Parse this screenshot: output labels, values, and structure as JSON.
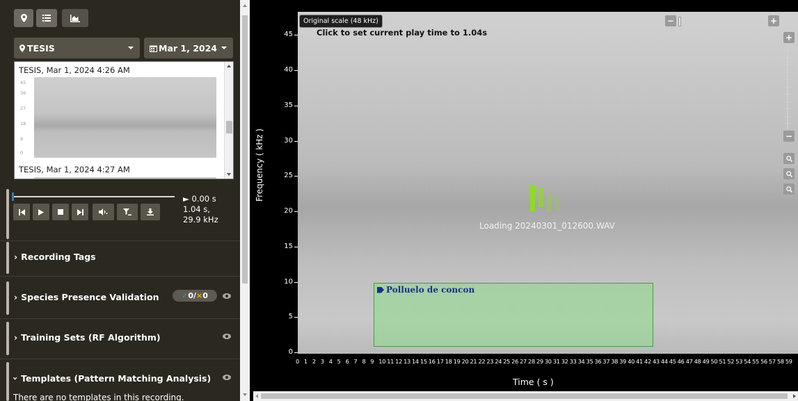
{
  "toolbar": {
    "buttons": [
      {
        "icon": "map-marker-icon",
        "glyph": "⚲"
      },
      {
        "icon": "list-icon",
        "glyph": "≡"
      },
      {
        "icon": "area-chart-icon",
        "glyph": "▲"
      }
    ]
  },
  "site_dropdown": {
    "label": "TESIS",
    "icon": "map-marker-icon"
  },
  "date_dropdown": {
    "label": "Mar 1, 2024",
    "icon": "calendar-icon"
  },
  "recordings": [
    {
      "title": "TESIS, Mar 1, 2024 4:26 AM",
      "axis": [
        "45",
        "36",
        "27",
        "18",
        "9",
        "0"
      ]
    },
    {
      "title": "TESIS, Mar 1, 2024 4:27 AM"
    }
  ],
  "player": {
    "progress": 0.0,
    "current_time": "► 0.00 s",
    "click_time": "1.04 s,",
    "click_freq": "29.9 kHz",
    "buttons": [
      {
        "name": "skip-back-button",
        "icon": "step-backward-icon",
        "glyph": "⏮"
      },
      {
        "name": "play-button",
        "icon": "play-icon",
        "glyph": "▶"
      },
      {
        "name": "stop-button",
        "icon": "stop-icon",
        "glyph": "■"
      },
      {
        "name": "skip-forward-button",
        "icon": "step-forward-icon",
        "glyph": "⏭"
      },
      {
        "name": "volume-button",
        "icon": "volume-icon",
        "glyph": "🔈"
      },
      {
        "name": "filter-button",
        "icon": "filter-icon",
        "glyph": "▼"
      },
      {
        "name": "download-button",
        "icon": "download-icon",
        "glyph": "⤓"
      }
    ]
  },
  "panels": {
    "recording_tags": "Recording Tags",
    "species_validation": "Species Presence Validation",
    "species_validation_badge": {
      "check_count": "0",
      "x_count": "0",
      "separator": "/"
    },
    "training_sets": "Training Sets (RF Algorithm)",
    "templates": "Templates (Pattern Matching Analysis)",
    "templates_empty": "There are no templates in this recording."
  },
  "viewer": {
    "scale_badge": "Original scale (48 kHz)",
    "click_message": "Click to set current play time to 1.04s",
    "loading_message": "Loading 20240301_012600.WAV",
    "y_axis_label": "Frequency ( kHz )",
    "x_axis_label": "Time ( s )",
    "y_ticks": [
      "45",
      "40",
      "35",
      "30",
      "25",
      "20",
      "15",
      "10",
      "5",
      "0"
    ],
    "x_ticks": [
      "0",
      "1",
      "2",
      "3",
      "4",
      "5",
      "6",
      "7",
      "8",
      "9",
      "10",
      "11",
      "12",
      "13",
      "14",
      "15",
      "16",
      "17",
      "18",
      "19",
      "20",
      "21",
      "22",
      "23",
      "24",
      "25",
      "26",
      "27",
      "28",
      "29",
      "30",
      "31",
      "32",
      "33",
      "34",
      "35",
      "36",
      "37",
      "38",
      "39",
      "40",
      "41",
      "42",
      "43",
      "44",
      "45",
      "46",
      "47",
      "48",
      "49",
      "50",
      "51",
      "52",
      "53",
      "54",
      "55",
      "56",
      "57",
      "58",
      "59"
    ],
    "annotation": {
      "label": "Polluelo de concon",
      "color": "#8cdc8c",
      "start_s": 9,
      "end_s": 42.3,
      "low_khz": 1.0,
      "high_khz": 10.0
    },
    "zoom_controls": {
      "minus": "−",
      "plus": "+",
      "zoom_icons": [
        "zoom-in-icon",
        "zoom-icon",
        "zoom-out-icon"
      ]
    }
  },
  "colors": {
    "sidebar_bg": "#2b2820",
    "accent": "#3a78b5",
    "annotation_text": "#1a2e8c",
    "loader": "#8edc20"
  }
}
